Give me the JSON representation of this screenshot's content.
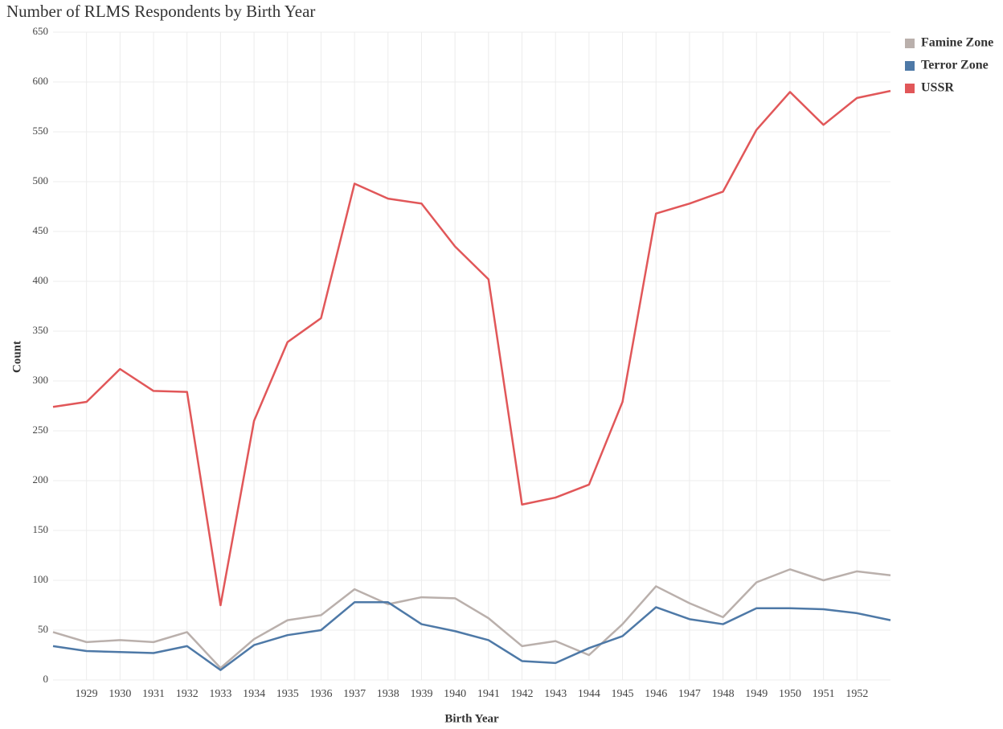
{
  "chart_data": {
    "type": "line",
    "title": "Number of RLMS Respondents by Birth Year",
    "xlabel": "Birth Year",
    "ylabel": "Count",
    "x": [
      1928,
      1929,
      1930,
      1931,
      1932,
      1933,
      1934,
      1935,
      1936,
      1937,
      1938,
      1939,
      1940,
      1941,
      1942,
      1943,
      1944,
      1945,
      1946,
      1947,
      1948,
      1949,
      1950,
      1951,
      1952,
      1953
    ],
    "series": [
      {
        "name": "Famine Zone",
        "color": "#bab0ac",
        "values": [
          48,
          38,
          40,
          38,
          48,
          12,
          41,
          60,
          65,
          91,
          76,
          83,
          82,
          62,
          34,
          39,
          25,
          56,
          94,
          77,
          63,
          98,
          111,
          100,
          109,
          105
        ]
      },
      {
        "name": "Terror Zone",
        "color": "#4e79a7",
        "values": [
          34,
          29,
          28,
          27,
          34,
          10,
          35,
          45,
          50,
          78,
          78,
          56,
          49,
          40,
          19,
          17,
          32,
          44,
          73,
          61,
          56,
          72,
          72,
          71,
          67,
          60
        ]
      },
      {
        "name": "USSR",
        "color": "#e15759",
        "values": [
          274,
          279,
          312,
          290,
          289,
          75,
          260,
          339,
          363,
          498,
          483,
          478,
          435,
          402,
          176,
          183,
          196,
          279,
          468,
          478,
          490,
          552,
          590,
          557,
          584,
          591
        ]
      }
    ],
    "xlim": [
      1928,
      1953
    ],
    "xticks": [
      1929,
      1930,
      1931,
      1932,
      1933,
      1934,
      1935,
      1936,
      1937,
      1938,
      1939,
      1940,
      1941,
      1942,
      1943,
      1944,
      1945,
      1946,
      1947,
      1948,
      1949,
      1950,
      1951,
      1952
    ],
    "ylim": [
      0,
      650
    ],
    "yticks": [
      0,
      50,
      100,
      150,
      200,
      250,
      300,
      350,
      400,
      450,
      500,
      550,
      600,
      650
    ],
    "grid": true,
    "legend": "top-right"
  }
}
